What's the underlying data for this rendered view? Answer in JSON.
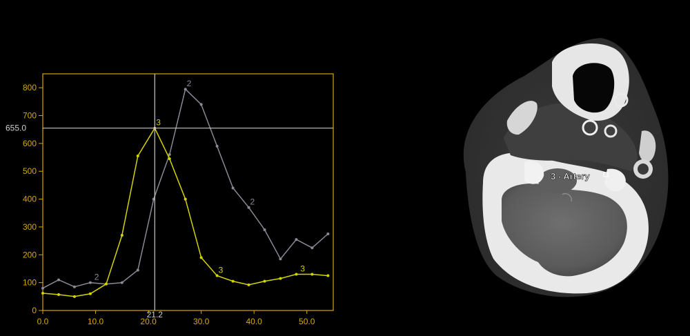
{
  "chart_data": {
    "type": "line",
    "title": "",
    "xlabel": "",
    "ylabel": "",
    "xlim": [
      0,
      55
    ],
    "ylim": [
      0,
      850
    ],
    "x_ticks": [
      "0.0",
      "10.0",
      "20.0",
      "30.0",
      "40.0",
      "50.0"
    ],
    "y_ticks": [
      "0",
      "100",
      "200",
      "300",
      "400",
      "500",
      "600",
      "700",
      "800"
    ],
    "grid": false,
    "series": [
      {
        "name": "2",
        "color": "#8a8a96",
        "x": [
          0,
          3,
          6,
          9,
          12,
          15,
          18,
          21,
          24,
          27,
          30,
          33,
          36,
          39,
          42,
          45,
          48,
          51,
          54
        ],
        "y": [
          80,
          110,
          85,
          100,
          95,
          100,
          145,
          400,
          560,
          795,
          740,
          590,
          440,
          370,
          290,
          185,
          255,
          225,
          275
        ],
        "labels": [
          {
            "x": 9.5,
            "y": 100,
            "text": "2"
          },
          {
            "x": 27,
            "y": 795,
            "text": "2"
          },
          {
            "x": 39,
            "y": 370,
            "text": "2"
          }
        ]
      },
      {
        "name": "3",
        "color": "#d4d400",
        "x": [
          0,
          3,
          6,
          9,
          12,
          15,
          18,
          21.2,
          24,
          27,
          30,
          33,
          36,
          39,
          42,
          45,
          48,
          51,
          54
        ],
        "y": [
          62,
          57,
          50,
          60,
          95,
          270,
          555,
          655,
          545,
          400,
          190,
          125,
          105,
          92,
          105,
          115,
          130,
          130,
          125
        ],
        "labels": [
          {
            "x": 21.2,
            "y": 655,
            "text": "3"
          },
          {
            "x": 33,
            "y": 125,
            "text": "3"
          },
          {
            "x": 48.5,
            "y": 130,
            "text": "3"
          }
        ]
      }
    ]
  },
  "crosshair": {
    "x": 21.2,
    "y": 655.0,
    "x_label": "21.2",
    "y_label": "655.0"
  },
  "image_panel": {
    "roi_label": "3 - Artery"
  }
}
